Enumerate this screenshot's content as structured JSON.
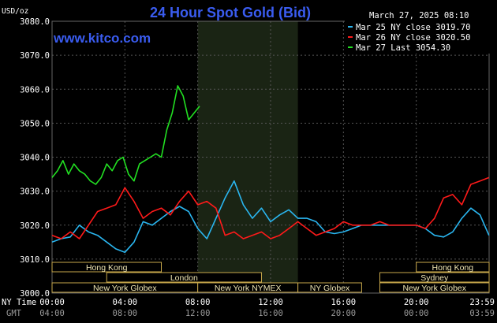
{
  "title": "24 Hour Spot Gold (Bid)",
  "site": "www.kitco.com",
  "unit_label": "USD/oz",
  "timestamp": "March 27, 2025 08:10",
  "legend": [
    {
      "label": "Mar 25 NY close 3019.70",
      "color": "#2ab6f0"
    },
    {
      "label": "Mar 26 NY close 3020.50",
      "color": "#ff1a1a"
    },
    {
      "label": "Mar 27 Last 3054.30",
      "color": "#22e022"
    }
  ],
  "y_ticks": [
    "3080.0",
    "3070.0",
    "3060.0",
    "3050.0",
    "3040.0",
    "3030.0",
    "3020.0",
    "3010.0",
    "3000.0"
  ],
  "x_axis": {
    "row1_label": "NY Time",
    "row2_label": "GMT",
    "ny_ticks": [
      "00:00",
      "04:00",
      "08:00",
      "12:00",
      "16:00",
      "20:00",
      "23:59"
    ],
    "gmt_ticks": [
      "04:00",
      "08:00",
      "12:00",
      "16:00",
      "20:00",
      "00:00",
      "03:59"
    ]
  },
  "markets": [
    {
      "label": "Hong Kong",
      "row": 0,
      "from": 0.0,
      "to": 6.0
    },
    {
      "label": "London",
      "row": 1,
      "from": 3.0,
      "to": 11.5
    },
    {
      "label": "New York Globex",
      "row": 2,
      "from": 0.0,
      "to": 8.0
    },
    {
      "label": "New York NYMEX",
      "row": 2,
      "from": 8.0,
      "to": 13.5
    },
    {
      "label": "NY Globex",
      "row": 2,
      "from": 13.5,
      "to": 17.0
    },
    {
      "label": "Hong Kong",
      "row": 0,
      "from": 20.0,
      "to": 24.0
    },
    {
      "label": "Sydney",
      "row": 1,
      "from": 18.0,
      "to": 24.0
    },
    {
      "label": "New York Globex",
      "row": 2,
      "from": 18.0,
      "to": 24.0
    }
  ],
  "chart_data": {
    "type": "line",
    "title": "24 Hour Spot Gold (Bid)",
    "ylabel": "USD/oz",
    "xlabel": "NY Time",
    "ylim": [
      3000,
      3080
    ],
    "xlim_hours": [
      0,
      24
    ],
    "x_unit": "hours (NY time)",
    "nymex_session_hours": [
      8,
      13.5
    ],
    "series": [
      {
        "name": "Mar 25 NY close 3019.70",
        "color": "#2ab6f0",
        "x": [
          0,
          0.5,
          1,
          1.5,
          2,
          2.5,
          3,
          3.5,
          4,
          4.5,
          5,
          5.5,
          6,
          6.5,
          7,
          7.5,
          8,
          8.5,
          9,
          9.5,
          10,
          10.5,
          11,
          11.5,
          12,
          12.5,
          13,
          13.5,
          14,
          14.5,
          15,
          15.5,
          16,
          16.5,
          17,
          17.5,
          18,
          18.5,
          19,
          19.5,
          20,
          20.5,
          21,
          21.5,
          22,
          22.5,
          23,
          23.5,
          23.99
        ],
        "y": [
          3015,
          3016,
          3016.5,
          3020,
          3018,
          3017,
          3015,
          3013,
          3012,
          3015,
          3021,
          3020,
          3022,
          3024,
          3025.5,
          3024,
          3019,
          3016,
          3022,
          3028,
          3033,
          3026,
          3022,
          3025,
          3021,
          3023,
          3024.5,
          3022,
          3022,
          3021,
          3018,
          3017.5,
          3018,
          3019,
          3020,
          3020,
          3020,
          3020,
          3020,
          3020,
          3020,
          3019,
          3017,
          3016.5,
          3018,
          3022,
          3025,
          3023,
          3017
        ]
      },
      {
        "name": "Mar 26 NY close 3020.50",
        "color": "#ff1a1a",
        "x": [
          0,
          0.5,
          1,
          1.5,
          2,
          2.5,
          3,
          3.5,
          4,
          4.5,
          5,
          5.5,
          6,
          6.5,
          7,
          7.5,
          8,
          8.5,
          9,
          9.5,
          10,
          10.5,
          11,
          11.5,
          12,
          12.5,
          13,
          13.5,
          14,
          14.5,
          15,
          15.5,
          16,
          16.5,
          17,
          17.5,
          18,
          18.5,
          19,
          19.5,
          20,
          20.5,
          21,
          21.5,
          22,
          22.5,
          23,
          23.5,
          23.99
        ],
        "y": [
          3017,
          3016,
          3018,
          3016,
          3020,
          3024,
          3025,
          3026,
          3031,
          3027,
          3022,
          3024,
          3025,
          3023,
          3027,
          3030,
          3026,
          3027,
          3025,
          3017,
          3018,
          3016,
          3017,
          3018,
          3016,
          3017,
          3019,
          3021,
          3019,
          3017,
          3018,
          3019,
          3021,
          3020,
          3020,
          3020,
          3021,
          3020,
          3020,
          3020,
          3020,
          3019,
          3022,
          3028,
          3029,
          3026,
          3032,
          3033,
          3034
        ]
      },
      {
        "name": "Mar 27 Last 3054.30",
        "color": "#22e022",
        "x": [
          0,
          0.3,
          0.6,
          0.9,
          1.2,
          1.5,
          1.8,
          2.1,
          2.4,
          2.7,
          3.0,
          3.3,
          3.6,
          3.9,
          4.2,
          4.5,
          4.8,
          5.1,
          5.4,
          5.7,
          6.0,
          6.3,
          6.6,
          6.9,
          7.2,
          7.5,
          7.8,
          8.1
        ],
        "y": [
          3034,
          3036,
          3039,
          3035,
          3038,
          3036,
          3035,
          3033,
          3032,
          3034,
          3038,
          3036,
          3039,
          3040,
          3035,
          3033,
          3038,
          3039,
          3040,
          3041,
          3040,
          3048,
          3053,
          3061,
          3058,
          3051,
          3053,
          3055
        ]
      }
    ]
  }
}
